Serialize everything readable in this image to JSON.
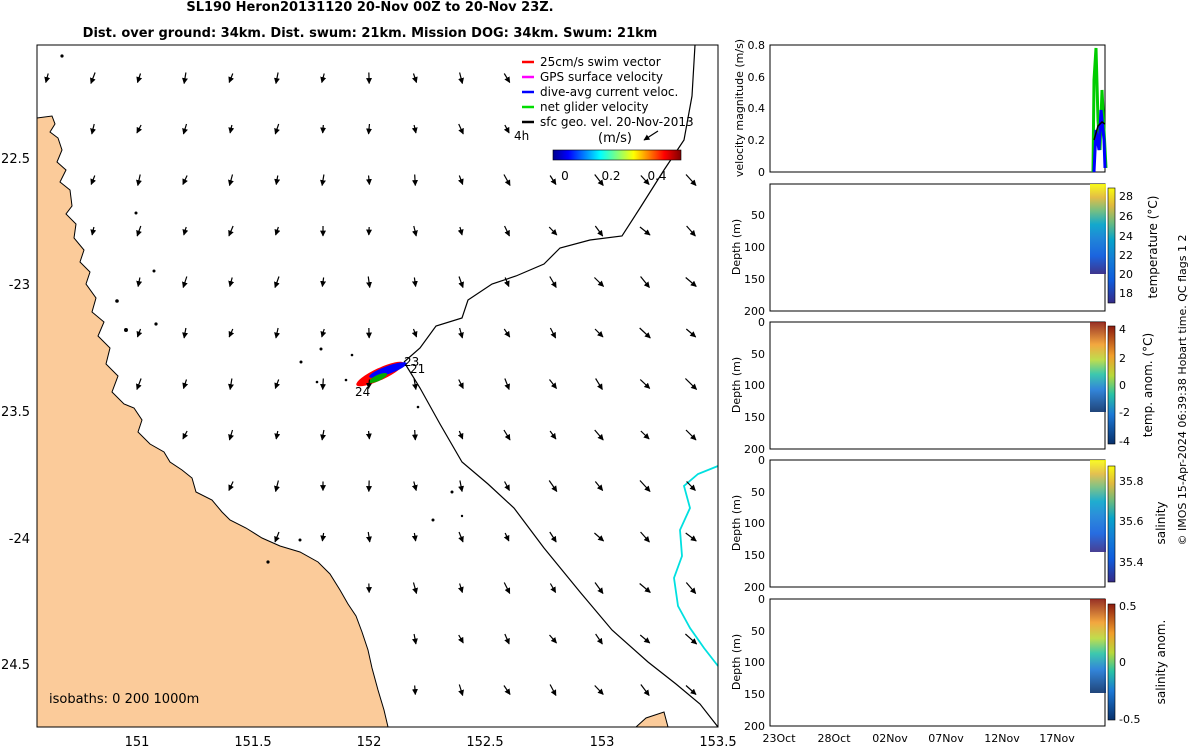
{
  "title_line1": "SL190 Heron20131120 20-Nov 00Z to 20-Nov 23Z.",
  "title_line2": "Dist. over ground: 34km. Dist. swum: 21km. Mission DOG: 34km. Swum: 21km",
  "map": {
    "lon_ticks": [
      "151",
      "151.5",
      "152",
      "152.5",
      "153",
      "153.5"
    ],
    "lat_ticks": [
      "22.5",
      "-23",
      "23.5",
      "-24",
      "24.5"
    ],
    "isobaths_label": "isobaths: 0   200  1000m",
    "legend": [
      {
        "label": "25cm/s swim vector",
        "color": "#ff0000"
      },
      {
        "label": "GPS surface velocity",
        "color": "#ff00ff"
      },
      {
        "label": "dive-avg current veloc.",
        "color": "#0000ff"
      },
      {
        "label": "net glider velocity",
        "color": "#00dd00"
      },
      {
        "label": "sfc geo. vel. 20-Nov-2013",
        "color": "#000000"
      }
    ],
    "scale_label": "4h",
    "colorbar_unit": "(m/s)",
    "colorbar_ticks": [
      "0",
      "0.2",
      "0.4"
    ],
    "track_labels": [
      "23",
      "21",
      "24"
    ],
    "colors": {
      "land": "#fbcb9a",
      "isobath_200": "#00e0e0",
      "track": "#000000"
    }
  },
  "side_panels": {
    "velocity": {
      "ylabel": "velocity magnitude (m/s)",
      "yticks": [
        "0.8",
        "0.6",
        "0.4",
        "0.2",
        "0"
      ]
    },
    "temperature": {
      "ylabel": "Depth (m)",
      "yticks": [
        "50",
        "100",
        "150",
        "200"
      ],
      "cbar_label": "temperature (°C)",
      "cbar_ticks": [
        "28",
        "26",
        "24",
        "22",
        "20",
        "18"
      ]
    },
    "temp_anom": {
      "ylabel": "Depth (m)",
      "yticks": [
        "0",
        "50",
        "100",
        "150",
        "200"
      ],
      "cbar_label": "temp. anom. (°C)",
      "cbar_ticks": [
        "4",
        "2",
        "0",
        "-2",
        "-4"
      ]
    },
    "salinity": {
      "ylabel": "Depth (m)",
      "yticks": [
        "0",
        "50",
        "100",
        "150",
        "200"
      ],
      "cbar_label": "salinity",
      "cbar_ticks": [
        "35.8",
        "35.6",
        "35.4"
      ]
    },
    "sal_anom": {
      "ylabel": "Depth (m)",
      "yticks": [
        "0",
        "50",
        "100",
        "150",
        "200"
      ],
      "cbar_label": "salinity anom.",
      "cbar_ticks": [
        "0.5",
        "0",
        "-0.5"
      ]
    },
    "xticks": [
      "23Oct",
      "28Oct",
      "02Nov",
      "07Nov",
      "12Nov",
      "17Nov"
    ]
  },
  "footer_vertical": "© IMOS 15-Apr-2024 06:39:38 Hobart time. QC flags 1  2"
}
